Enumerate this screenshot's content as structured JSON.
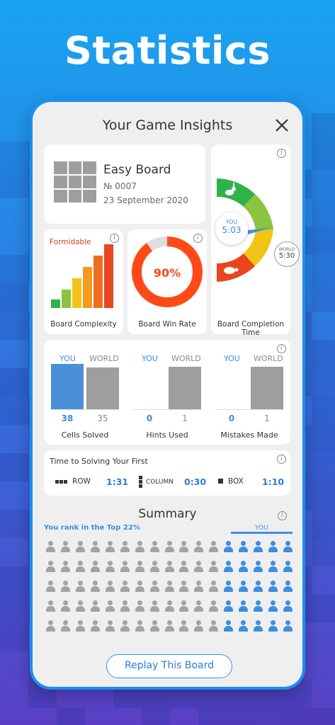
{
  "headline": "Statistics",
  "dialog": {
    "title": "Your Game Insights",
    "close_icon": "close-icon"
  },
  "board": {
    "title": "Easy Board",
    "number": "№ 0007",
    "date": "23 September 2020"
  },
  "complexity": {
    "level": "Formidable",
    "label": "Board Complexity",
    "bars_filled": 6,
    "bar_colors": [
      "#2cb34a",
      "#8bc53f",
      "#f2c418",
      "#f39a1f",
      "#ef6d1d",
      "#e8461e"
    ]
  },
  "win_rate": {
    "value": "90%",
    "fraction": 0.9,
    "label": "Board Win Rate",
    "color": "#ff4a17"
  },
  "completion": {
    "label": "Board Completion Time",
    "you_label": "YOU",
    "you_time": "5:03",
    "world_label": "WORLD",
    "world_time": "5:30",
    "fast_icon": "rabbit-icon",
    "slow_icon": "turtle-icon"
  },
  "compare": {
    "you_label": "YOU",
    "world_label": "WORLD",
    "groups": [
      {
        "label": "Cells Solved",
        "you": "38",
        "world": "35"
      },
      {
        "label": "Hints Used",
        "you": "0",
        "world": "1"
      },
      {
        "label": "Mistakes Made",
        "you": "0",
        "world": "1"
      }
    ],
    "you_color": "#4a90d9",
    "world_color": "#9e9e9e"
  },
  "time_solving": {
    "title": "Time to Solving Your First",
    "items": [
      {
        "label": "ROW",
        "time": "1:31",
        "icon": "row-icon"
      },
      {
        "label": "COLUMN",
        "time": "0:30",
        "icon": "column-icon"
      },
      {
        "label": "BOX",
        "time": "1:10",
        "icon": "box-icon"
      }
    ]
  },
  "summary": {
    "title": "Summary",
    "rank": "You rank in the Top 22%",
    "you_tag": "YOU",
    "rows": 5,
    "per_row": 17,
    "highlighted_per_row": 5,
    "highlight_color": "#3c8ee0",
    "base_color": "#a3a3a3"
  },
  "replay_button": "Replay This Board"
}
